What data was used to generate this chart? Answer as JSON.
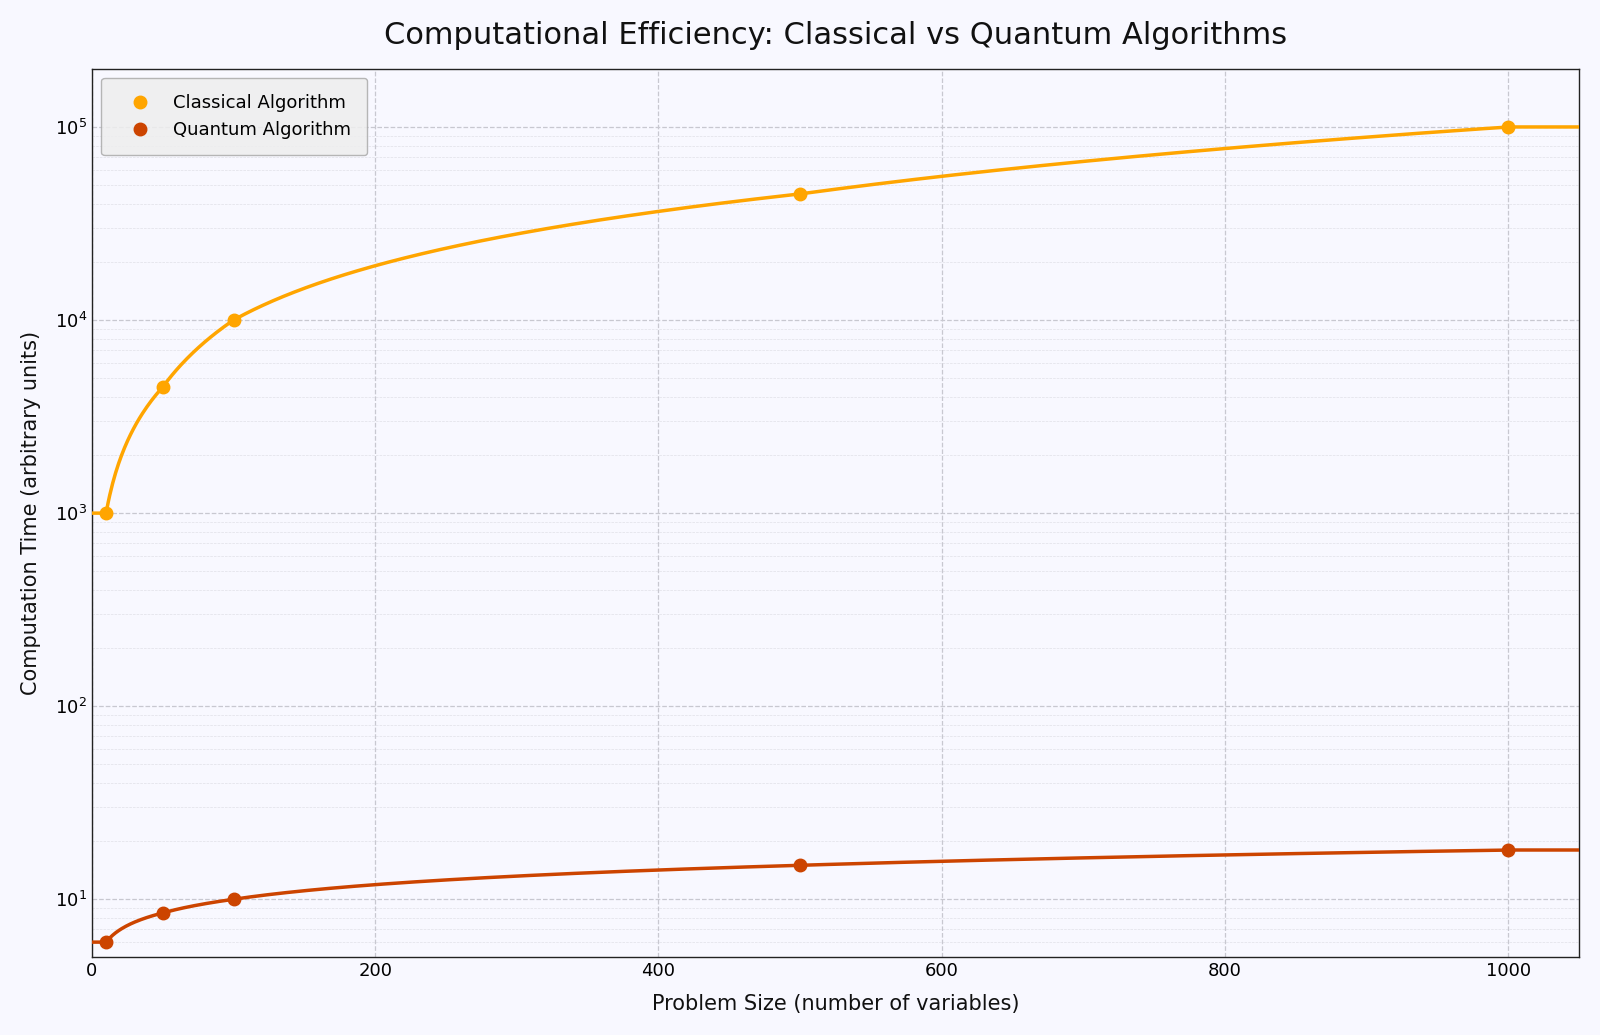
{
  "title": "Computational Efficiency: Classical vs Quantum Algorithms",
  "xlabel": "Problem Size (number of variables)",
  "ylabel": "Computation Time (arbitrary units)",
  "classical_x": [
    10,
    50,
    100,
    500,
    1000
  ],
  "classical_y": [
    1000,
    4500,
    10000,
    45000,
    100000
  ],
  "quantum_x": [
    10,
    50,
    100,
    500,
    1000
  ],
  "quantum_y": [
    6,
    8.5,
    10,
    15,
    18
  ],
  "classical_color": "#FFA500",
  "quantum_color": "#CC4400",
  "classical_label": "Classical Algorithm",
  "quantum_label": "Quantum Algorithm",
  "ylim_min": 5,
  "ylim_max": 200000,
  "xlim_min": 0,
  "xlim_max": 1050,
  "background_color": "#f8f8ff",
  "grid_color": "#c8c8d0",
  "title_fontsize": 22,
  "label_fontsize": 15,
  "legend_fontsize": 13,
  "tick_fontsize": 13,
  "linewidth": 2.5,
  "markersize": 9
}
